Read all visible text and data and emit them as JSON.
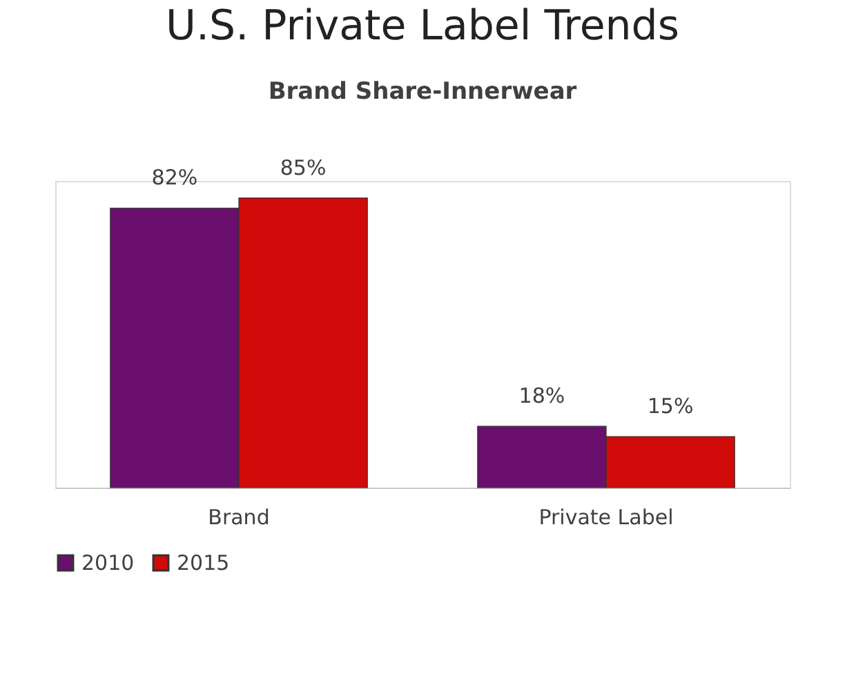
{
  "chart_data": {
    "type": "bar",
    "title": "U.S. Private Label Trends",
    "subtitle": "Brand Share-Innerwear",
    "categories": [
      "Brand",
      "Private Label"
    ],
    "series": [
      {
        "name": "2010",
        "color": "#6b0f6e",
        "values": [
          82,
          18
        ],
        "value_labels": [
          "82%",
          "18%"
        ]
      },
      {
        "name": "2015",
        "color": "#d10a0a",
        "values": [
          85,
          15
        ],
        "value_labels": [
          "85%",
          "15%"
        ]
      }
    ],
    "legend": "bottom",
    "grid": false,
    "tick_labels": "x"
  }
}
